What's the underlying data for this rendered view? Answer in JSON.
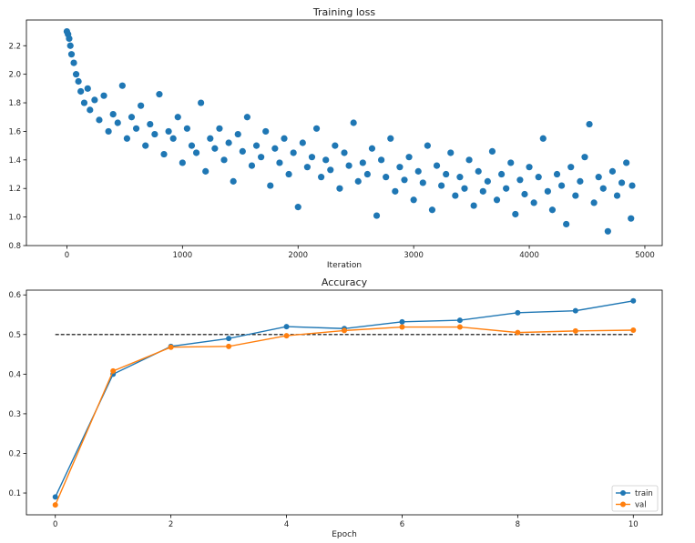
{
  "chart_data": [
    {
      "type": "scatter",
      "title": "Training loss",
      "xlabel": "Iteration",
      "ylabel": "",
      "xlim": [
        -350,
        5150
      ],
      "ylim": [
        0.8,
        2.38
      ],
      "xticks": [
        0,
        1000,
        2000,
        3000,
        4000,
        5000
      ],
      "yticks": [
        0.8,
        1.0,
        1.2,
        1.4,
        1.6,
        1.8,
        2.0,
        2.2
      ],
      "grid": false,
      "color": "#1f77b4",
      "x": [
        0,
        10,
        20,
        30,
        40,
        60,
        80,
        100,
        120,
        150,
        180,
        200,
        240,
        280,
        320,
        360,
        400,
        440,
        480,
        520,
        560,
        600,
        640,
        680,
        720,
        760,
        800,
        840,
        880,
        920,
        960,
        1000,
        1040,
        1080,
        1120,
        1160,
        1200,
        1240,
        1280,
        1320,
        1360,
        1400,
        1440,
        1480,
        1520,
        1560,
        1600,
        1640,
        1680,
        1720,
        1760,
        1800,
        1840,
        1880,
        1920,
        1960,
        2000,
        2040,
        2080,
        2120,
        2160,
        2200,
        2240,
        2280,
        2320,
        2360,
        2400,
        2440,
        2480,
        2520,
        2560,
        2600,
        2640,
        2680,
        2720,
        2760,
        2800,
        2840,
        2880,
        2920,
        2960,
        3000,
        3040,
        3080,
        3120,
        3160,
        3200,
        3240,
        3280,
        3320,
        3360,
        3400,
        3440,
        3480,
        3520,
        3560,
        3600,
        3640,
        3680,
        3720,
        3760,
        3800,
        3840,
        3880,
        3920,
        3960,
        4000,
        4040,
        4080,
        4120,
        4160,
        4200,
        4240,
        4280,
        4320,
        4360,
        4400,
        4440,
        4480,
        4520,
        4560,
        4600,
        4640,
        4680,
        4720,
        4760,
        4800,
        4840,
        4880,
        4890
      ],
      "y": [
        2.3,
        2.28,
        2.25,
        2.2,
        2.14,
        2.08,
        2.0,
        1.95,
        1.88,
        1.8,
        1.9,
        1.75,
        1.82,
        1.68,
        1.85,
        1.6,
        1.72,
        1.66,
        1.92,
        1.55,
        1.7,
        1.62,
        1.78,
        1.5,
        1.65,
        1.58,
        1.86,
        1.44,
        1.6,
        1.55,
        1.7,
        1.38,
        1.62,
        1.5,
        1.45,
        1.8,
        1.32,
        1.55,
        1.48,
        1.62,
        1.4,
        1.52,
        1.25,
        1.58,
        1.46,
        1.7,
        1.36,
        1.5,
        1.42,
        1.6,
        1.22,
        1.48,
        1.38,
        1.55,
        1.3,
        1.45,
        1.07,
        1.52,
        1.35,
        1.42,
        1.62,
        1.28,
        1.4,
        1.33,
        1.5,
        1.2,
        1.45,
        1.36,
        1.66,
        1.25,
        1.38,
        1.3,
        1.48,
        1.01,
        1.4,
        1.28,
        1.55,
        1.18,
        1.35,
        1.26,
        1.42,
        1.12,
        1.32,
        1.24,
        1.5,
        1.05,
        1.36,
        1.22,
        1.3,
        1.45,
        1.15,
        1.28,
        1.2,
        1.4,
        1.08,
        1.32,
        1.18,
        1.25,
        1.46,
        1.12,
        1.3,
        1.2,
        1.38,
        1.02,
        1.26,
        1.16,
        1.35,
        1.1,
        1.28,
        1.55,
        1.18,
        1.05,
        1.3,
        1.22,
        0.95,
        1.35,
        1.15,
        1.25,
        1.42,
        1.65,
        1.1,
        1.28,
        1.2,
        0.9,
        1.32,
        1.15,
        1.24,
        1.38,
        0.99,
        1.22
      ]
    },
    {
      "type": "line",
      "title": "Accuracy",
      "xlabel": "Epoch",
      "ylabel": "",
      "xlim": [
        -0.5,
        10.5
      ],
      "ylim": [
        0.045,
        0.612
      ],
      "xticks": [
        0,
        2,
        4,
        6,
        8,
        10
      ],
      "yticks": [
        0.1,
        0.2,
        0.3,
        0.4,
        0.5,
        0.6
      ],
      "grid": false,
      "legend_position": "bottom-right",
      "x": [
        0,
        1,
        2,
        3,
        4,
        5,
        6,
        7,
        8,
        9,
        10
      ],
      "series": [
        {
          "name": "train",
          "color": "#1f77b4",
          "values": [
            0.09,
            0.4,
            0.47,
            0.49,
            0.52,
            0.515,
            0.532,
            0.536,
            0.555,
            0.56,
            0.585
          ]
        },
        {
          "name": "val",
          "color": "#ff7f0e",
          "values": [
            0.07,
            0.408,
            0.468,
            0.47,
            0.497,
            0.51,
            0.519,
            0.519,
            0.505,
            0.509,
            0.511
          ]
        }
      ],
      "reference_line": {
        "y": 0.5,
        "style": "dashed",
        "color": "#000000"
      }
    }
  ]
}
